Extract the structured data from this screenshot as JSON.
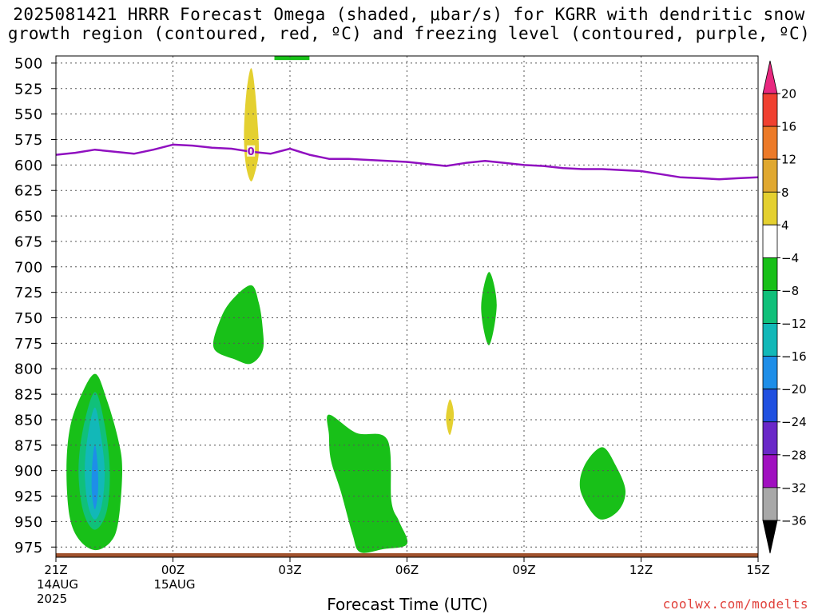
{
  "title": {
    "line1": "2025081421 HRRR Forecast Omega (shaded, μbar/s) for KGRR with dendritic snow",
    "line2": "growth region (contoured, red, ºC) and freezing level (contoured, purple, ºC)"
  },
  "credit": "coolwx.com/modelts",
  "chart_data": {
    "type": "heatmap",
    "title": "2025081421 HRRR Forecast Omega (shaded, μbar/s) for KGRR with dendritic snow growth region (contoured, red, ºC) and freezing level (contoured, purple, ºC)",
    "xlabel": "Forecast Time (UTC)",
    "ylabel": "",
    "x_hours_since_start_range": [
      0,
      18
    ],
    "x_ticks": [
      {
        "hour": 0,
        "label": "21Z",
        "sub1": "14AUG",
        "sub2": "2025"
      },
      {
        "hour": 3,
        "label": "00Z",
        "sub1": "15AUG",
        "sub2": ""
      },
      {
        "hour": 6,
        "label": "03Z",
        "sub1": "",
        "sub2": ""
      },
      {
        "hour": 9,
        "label": "06Z",
        "sub1": "",
        "sub2": ""
      },
      {
        "hour": 12,
        "label": "09Z",
        "sub1": "",
        "sub2": ""
      },
      {
        "hour": 15,
        "label": "12Z",
        "sub1": "",
        "sub2": ""
      },
      {
        "hour": 18,
        "label": "15Z",
        "sub1": "",
        "sub2": ""
      }
    ],
    "y_pressure_hpa_range": [
      985,
      493
    ],
    "y_ticks": [
      500,
      525,
      550,
      575,
      600,
      625,
      650,
      675,
      700,
      725,
      750,
      775,
      800,
      825,
      850,
      875,
      900,
      925,
      950,
      975
    ],
    "grid": true,
    "colorbar": {
      "labels": [
        "20",
        "16",
        "12",
        "8",
        "4",
        "−4",
        "−8",
        "−12",
        "−16",
        "−20",
        "−24",
        "−28",
        "−32",
        "−36"
      ],
      "colors": [
        "#e8287f",
        "#f04030",
        "#ec7a28",
        "#e0a830",
        "#e4d030",
        "#ffffff",
        "#18c018",
        "#10c07a",
        "#12b8b8",
        "#1e8ee8",
        "#2050e0",
        "#6a28c8",
        "#a010c0",
        "#a8a8a8",
        "#000000"
      ]
    },
    "omega_regions": [
      {
        "color": "#18c018",
        "value_range": "-8 to -4",
        "points": [
          [
            5.6,
            493
          ],
          [
            6.5,
            493
          ],
          [
            6.5,
            497
          ],
          [
            5.6,
            497
          ]
        ]
      },
      {
        "color": "#e4d030",
        "value_range": "4 to 8",
        "points": [
          [
            5,
            505
          ],
          [
            5.1,
            525
          ],
          [
            5.18,
            565
          ],
          [
            5.2,
            588
          ],
          [
            5.12,
            605
          ],
          [
            5,
            616
          ],
          [
            4.87,
            600
          ],
          [
            4.82,
            570
          ],
          [
            4.88,
            530
          ]
        ]
      },
      {
        "color": "#18c018",
        "value_range": "-8 to -4",
        "points": [
          [
            5,
            718
          ],
          [
            5.2,
            735
          ],
          [
            5.3,
            760
          ],
          [
            5.3,
            782
          ],
          [
            5,
            795
          ],
          [
            4.6,
            791
          ],
          [
            4.05,
            780
          ],
          [
            4.2,
            753
          ],
          [
            4.5,
            733
          ]
        ]
      },
      {
        "color": "#18c018",
        "value_range": "-8 to -4",
        "points": [
          [
            1,
            805
          ],
          [
            1.3,
            830
          ],
          [
            1.6,
            870
          ],
          [
            1.7,
            900
          ],
          [
            1.6,
            950
          ],
          [
            1.4,
            970
          ],
          [
            1,
            978
          ],
          [
            0.6,
            968
          ],
          [
            0.35,
            945
          ],
          [
            0.27,
            900
          ],
          [
            0.35,
            860
          ],
          [
            0.6,
            830
          ]
        ]
      },
      {
        "color": "#10c07a",
        "value_range": "-12 to -8",
        "points": [
          [
            1,
            823
          ],
          [
            1.25,
            855
          ],
          [
            1.38,
            900
          ],
          [
            1.3,
            940
          ],
          [
            1,
            958
          ],
          [
            0.7,
            940
          ],
          [
            0.58,
            900
          ],
          [
            0.7,
            858
          ]
        ]
      },
      {
        "color": "#12b8b8",
        "value_range": "-16 to -12",
        "points": [
          [
            1,
            838
          ],
          [
            1.15,
            865
          ],
          [
            1.25,
            900
          ],
          [
            1.18,
            933
          ],
          [
            1,
            948
          ],
          [
            0.82,
            933
          ],
          [
            0.74,
            900
          ],
          [
            0.82,
            865
          ]
        ]
      },
      {
        "color": "#1e8ee8",
        "value_range": "-20 to -16",
        "points": [
          [
            1,
            875
          ],
          [
            1.07,
            895
          ],
          [
            1.08,
            920
          ],
          [
            1,
            938
          ],
          [
            0.92,
            920
          ],
          [
            0.93,
            895
          ]
        ]
      },
      {
        "color": "#18c018",
        "value_range": "-8 to -4",
        "points": [
          [
            7,
            845
          ],
          [
            7.7,
            863
          ],
          [
            8.5,
            870
          ],
          [
            8.6,
            930
          ],
          [
            8.8,
            950
          ],
          [
            9,
            972
          ],
          [
            8.4,
            977
          ],
          [
            7.8,
            980
          ],
          [
            7.6,
            962
          ],
          [
            7.3,
            920
          ],
          [
            7.05,
            890
          ],
          [
            7,
            865
          ]
        ]
      },
      {
        "color": "#e4d030",
        "value_range": "4 to 8",
        "points": [
          [
            10.1,
            830
          ],
          [
            10.2,
            845
          ],
          [
            10.1,
            865
          ],
          [
            10,
            848
          ]
        ]
      },
      {
        "color": "#18c018",
        "value_range": "-8 to -4",
        "points": [
          [
            11.1,
            705
          ],
          [
            11.3,
            737
          ],
          [
            11.1,
            777
          ],
          [
            10.9,
            740
          ]
        ]
      },
      {
        "color": "#18c018",
        "value_range": "-8 to -4",
        "points": [
          [
            14,
            877
          ],
          [
            14.35,
            895
          ],
          [
            14.6,
            920
          ],
          [
            14.4,
            940
          ],
          [
            13.9,
            947
          ],
          [
            13.45,
            920
          ],
          [
            13.55,
            895
          ]
        ]
      }
    ],
    "terrain_band": {
      "color": "#a0522d",
      "pressure_range": [
        981,
        987
      ]
    },
    "freezing_level_series": {
      "color": "#9010c0",
      "contour_label": "0",
      "hour": [
        0,
        0.5,
        1,
        1.5,
        2,
        2.5,
        3,
        3.5,
        4,
        4.5,
        5,
        5.5,
        6,
        6.5,
        7,
        7.5,
        8,
        8.5,
        9,
        9.5,
        10,
        10.5,
        11,
        11.5,
        12,
        12.5,
        13,
        13.5,
        14,
        14.5,
        15,
        15.5,
        16,
        16.5,
        17,
        17.5,
        18
      ],
      "pressure": [
        590,
        588,
        585,
        587,
        589,
        585,
        580,
        581,
        583,
        584,
        587,
        589,
        584,
        590,
        594,
        594,
        595,
        596,
        597,
        599,
        601,
        598,
        596,
        598,
        600,
        601,
        603,
        604,
        604,
        605,
        606,
        609,
        612,
        613,
        614,
        613,
        612
      ]
    }
  }
}
